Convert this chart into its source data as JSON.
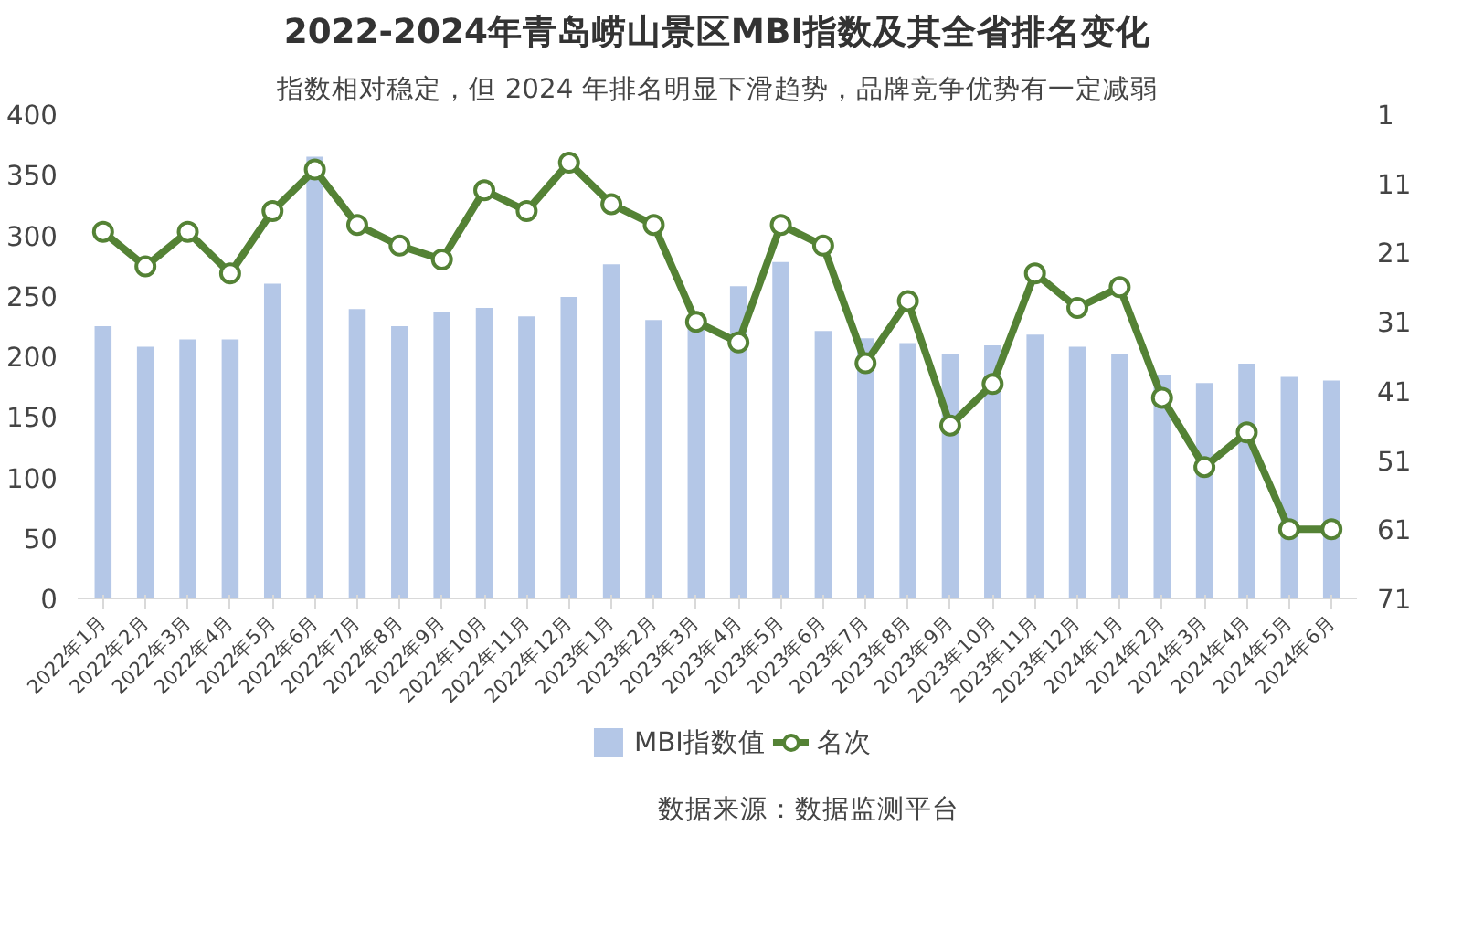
{
  "chart_data": {
    "type": "bar",
    "title": "2022-2024年青岛崂山景区MBI指数及其全省排名变化",
    "subtitle": "指数相对稳定，但 2024 年排名明显下滑趋势，品牌竞争优势有一定减弱",
    "categories": [
      "2022年1月",
      "2022年2月",
      "2022年3月",
      "2022年4月",
      "2022年5月",
      "2022年6月",
      "2022年7月",
      "2022年8月",
      "2022年9月",
      "2022年10月",
      "2022年11月",
      "2022年12月",
      "2023年1月",
      "2023年2月",
      "2023年3月",
      "2023年4月",
      "2023年5月",
      "2023年6月",
      "2023年7月",
      "2023年8月",
      "2023年9月",
      "2023年10月",
      "2023年11月",
      "2023年12月",
      "2024年1月",
      "2024年2月",
      "2024年3月",
      "2024年4月",
      "2024年5月",
      "2024年6月"
    ],
    "series": [
      {
        "name": "MBI指数值",
        "type": "bar",
        "color": "#b4c7e7",
        "values": [
          225,
          208,
          214,
          214,
          260,
          365,
          239,
          225,
          237,
          240,
          233,
          249,
          276,
          230,
          225,
          258,
          278,
          221,
          215,
          211,
          202,
          209,
          218,
          208,
          202,
          185,
          178,
          194,
          183,
          180
        ]
      },
      {
        "name": "名次",
        "type": "line",
        "axis": "y2",
        "color": "#548235",
        "marker": "circle",
        "values": [
          18,
          23,
          18,
          24,
          15,
          9,
          17,
          20,
          22,
          12,
          15,
          8,
          14,
          17,
          31,
          34,
          17,
          20,
          37,
          28,
          46,
          40,
          24,
          29,
          26,
          42,
          52,
          47,
          61,
          61
        ]
      }
    ],
    "ylim": [
      0,
      400
    ],
    "yticks": [
      0,
      50,
      100,
      150,
      200,
      250,
      300,
      350,
      400
    ],
    "y2lim": [
      71,
      1
    ],
    "y2ticks": [
      1,
      11,
      21,
      31,
      41,
      51,
      61,
      71
    ],
    "legend": "bottom",
    "grid": false,
    "annotations": [
      "数据来源：数据监测平台"
    ]
  }
}
